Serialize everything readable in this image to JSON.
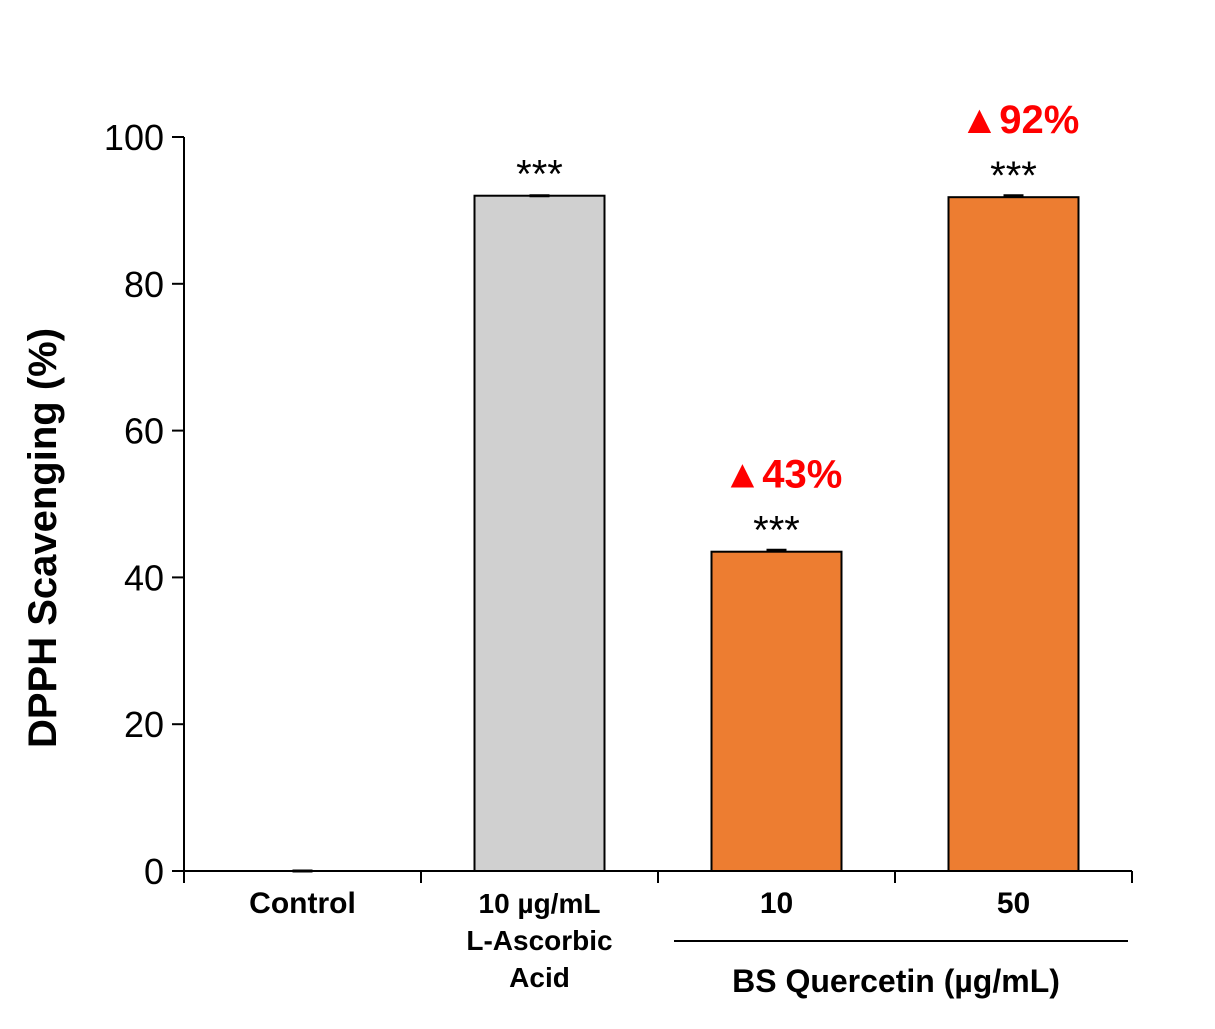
{
  "chart_data": {
    "type": "bar",
    "ylabel": "DPPH Scavenging (%)",
    "xlabel": "",
    "ylim": [
      0,
      100
    ],
    "yticks": [
      0,
      20,
      40,
      60,
      80,
      100
    ],
    "categories": [
      [
        "Control"
      ],
      [
        "10 µg/mL",
        "L-Ascorbic",
        "Acid"
      ],
      [
        "10"
      ],
      [
        "50"
      ]
    ],
    "values": [
      0,
      92,
      43.5,
      91.8
    ],
    "errors": [
      0,
      0,
      0.2,
      0.2
    ],
    "bar_colors": [
      "#d0d0d0",
      "#d0d0d0",
      "#ed7d31",
      "#ed7d31"
    ],
    "significance": [
      "",
      "***",
      "***",
      "***"
    ],
    "increase_labels": [
      "",
      "",
      "▲43%",
      "▲92%"
    ],
    "increase_color": "#ff0000",
    "group_label": "BS Quercetin (µg/mL)"
  }
}
